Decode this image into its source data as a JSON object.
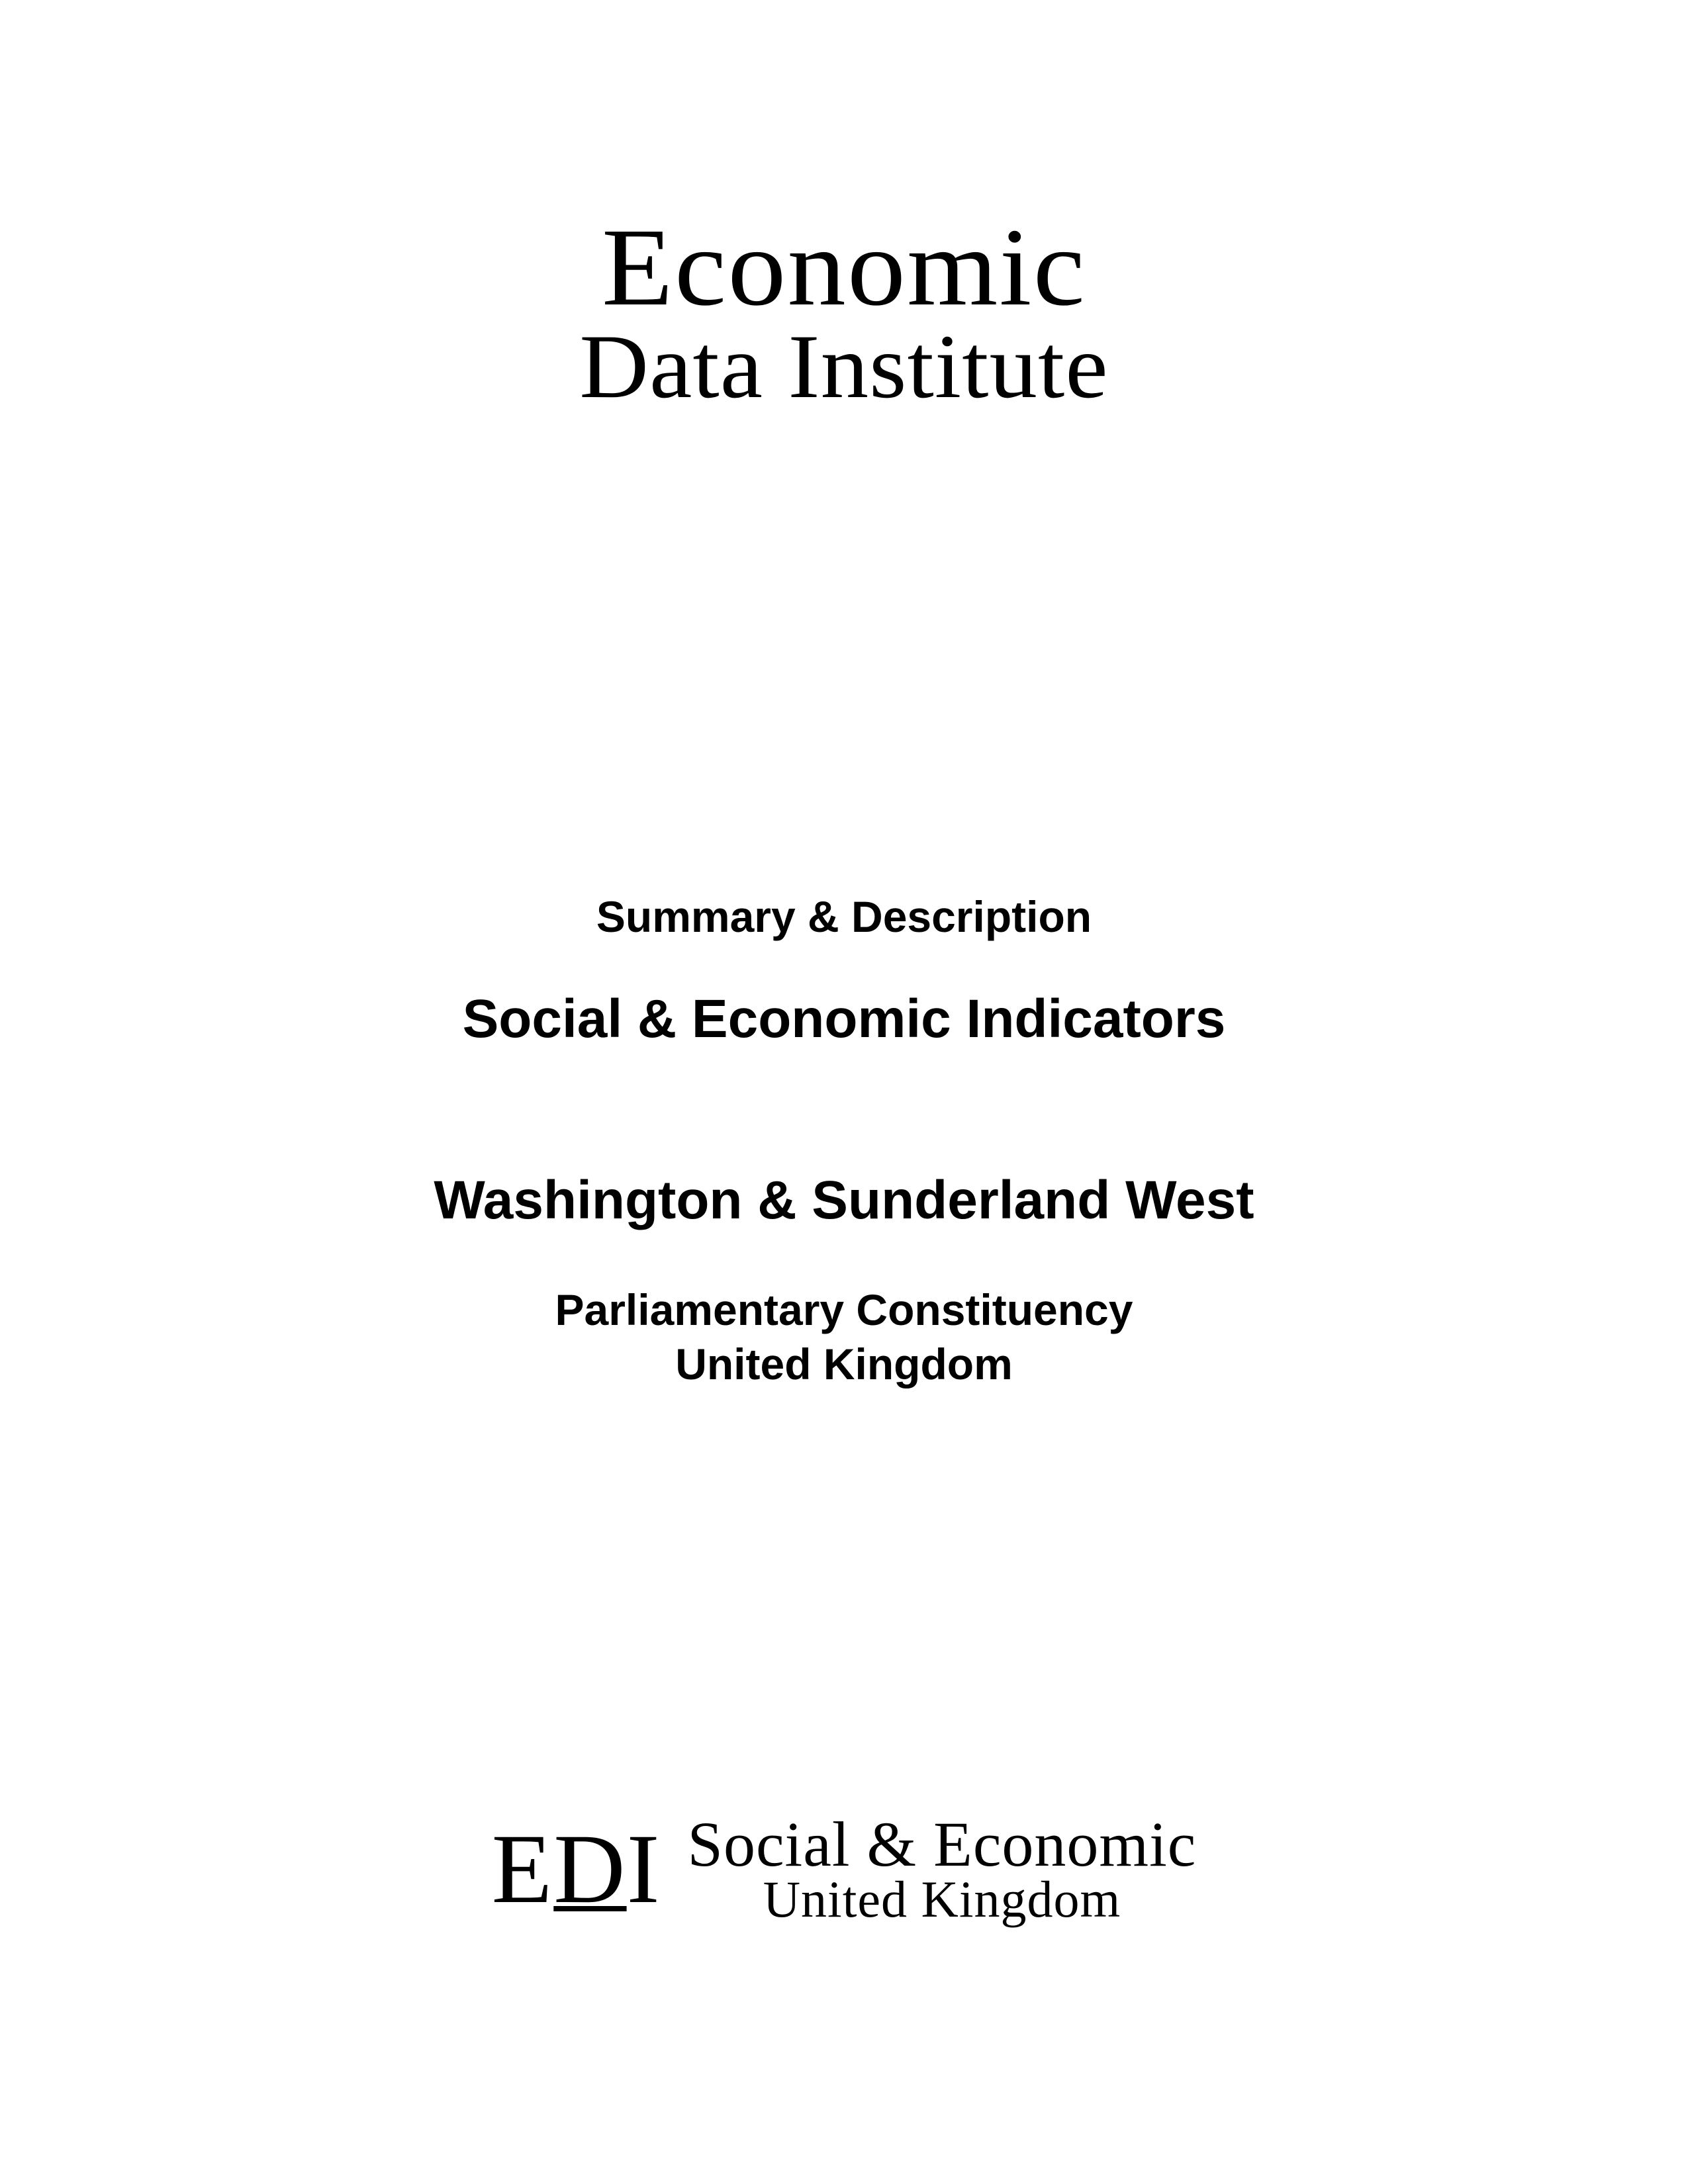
{
  "top_logo": {
    "line1": "Economic",
    "line2": "Data Institute"
  },
  "center": {
    "summary": "Summary & Description",
    "title1": "Social & Economic Indicators",
    "title2": "Washington & Sunderland West",
    "sub1": "Parliamentary Constituency",
    "sub2": "United Kingdom"
  },
  "bottom_logo": {
    "mark_E": "E",
    "mark_D": "D",
    "mark_I": "I",
    "text_line1": "Social & Economic",
    "text_line2": "United Kingdom"
  },
  "colors": {
    "text": "#000000",
    "background": "#ffffff"
  }
}
